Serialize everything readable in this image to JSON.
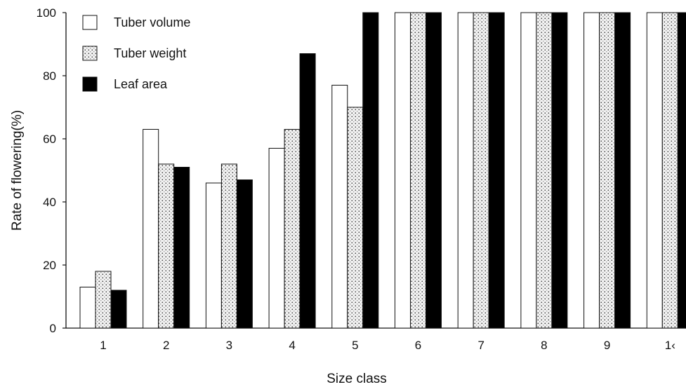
{
  "chart_data": {
    "type": "bar",
    "xlabel": "Size class",
    "ylabel": "Rate of flowering(%)",
    "ylim": [
      0,
      100
    ],
    "yticks": [
      0,
      20,
      40,
      60,
      80,
      100
    ],
    "categories": [
      "1",
      "2",
      "3",
      "4",
      "5",
      "6",
      "7",
      "8",
      "9",
      "1‹"
    ],
    "series": [
      {
        "name": "Tuber volume",
        "fill": "white",
        "color": "#ffffff",
        "values": [
          13,
          63,
          46,
          57,
          77,
          100,
          100,
          100,
          100,
          100
        ]
      },
      {
        "name": "Tuber weight",
        "fill": "dotted",
        "color": "#e0e0e0",
        "values": [
          18,
          52,
          52,
          63,
          70,
          100,
          100,
          100,
          100,
          100
        ]
      },
      {
        "name": "Leaf area",
        "fill": "black",
        "color": "#000000",
        "values": [
          12,
          51,
          47,
          87,
          100,
          100,
          100,
          100,
          100,
          100
        ]
      }
    ],
    "legend_position": "top-left",
    "grid": false
  }
}
